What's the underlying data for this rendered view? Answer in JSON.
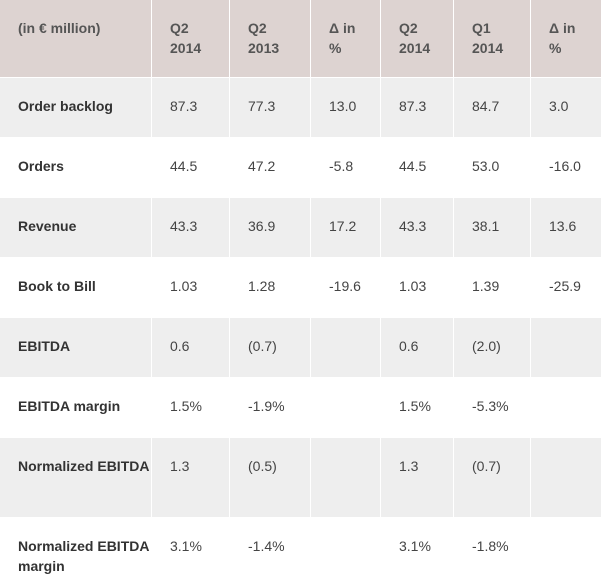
{
  "table": {
    "header": [
      [
        "(in € million)"
      ],
      [
        "Q2",
        "2014"
      ],
      [
        "Q2",
        "2013"
      ],
      [
        "Δ in",
        "%"
      ],
      [
        "Q2",
        "2014"
      ],
      [
        "Q1",
        "2014"
      ],
      [
        "Δ in",
        "%"
      ]
    ],
    "rows": [
      [
        "Order backlog",
        "87.3",
        "77.3",
        "13.0",
        "87.3",
        "84.7",
        "3.0"
      ],
      [
        "Orders",
        "44.5",
        "47.2",
        "-5.8",
        "44.5",
        "53.0",
        "-16.0"
      ],
      [
        "Revenue",
        "43.3",
        "36.9",
        "17.2",
        "43.3",
        "38.1",
        "13.6"
      ],
      [
        "Book to Bill",
        "1.03",
        "1.28",
        "-19.6",
        "1.03",
        "1.39",
        "-25.9"
      ],
      [
        "EBITDA",
        "0.6",
        "(0.7)",
        "",
        "0.6",
        "(2.0)",
        ""
      ],
      [
        "EBITDA margin",
        "1.5%",
        "-1.9%",
        "",
        "1.5%",
        "-5.3%",
        ""
      ],
      [
        "Normalized EBITDA",
        "1.3",
        "(0.5)",
        "",
        "1.3",
        "(0.7)",
        ""
      ],
      [
        "Normalized EBITDA margin",
        "3.1%",
        "-1.4%",
        "",
        "3.1%",
        "-1.8%",
        ""
      ]
    ]
  }
}
